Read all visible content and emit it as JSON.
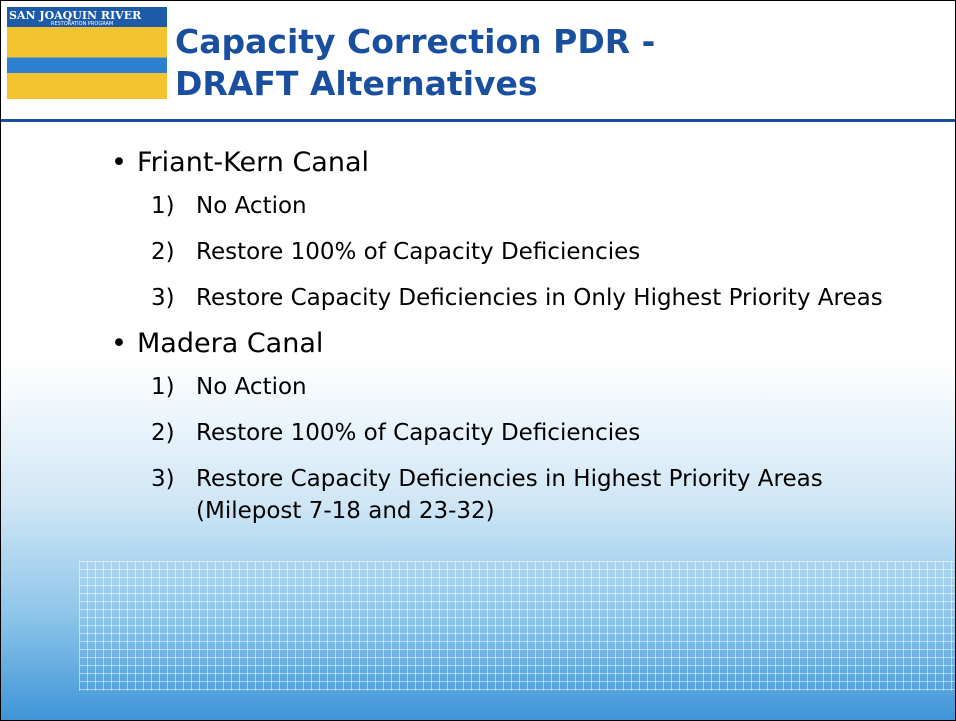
{
  "logo": {
    "line1": "SAN JOAQUIN RIVER",
    "line2": "RESTORATION PROGRAM"
  },
  "header": {
    "title_line1": "Capacity Correction PDR -",
    "title_line2": "DRAFT Alternatives"
  },
  "sections": [
    {
      "heading": "Friant-Kern Canal",
      "items": [
        {
          "num": "1)",
          "text": "No Action"
        },
        {
          "num": "2)",
          "text": "Restore 100% of Capacity Deficiencies"
        },
        {
          "num": "3)",
          "text": "Restore Capacity Deficiencies in Only Highest Priority Areas"
        }
      ]
    },
    {
      "heading": "Madera Canal",
      "items": [
        {
          "num": "1)",
          "text": "No Action"
        },
        {
          "num": "2)",
          "text": "Restore 100% of Capacity Deficiencies"
        },
        {
          "num": "3)",
          "text": "Restore Capacity Deficiencies in Highest Priority Areas (Milepost 7-18 and 23-32)"
        }
      ]
    }
  ]
}
